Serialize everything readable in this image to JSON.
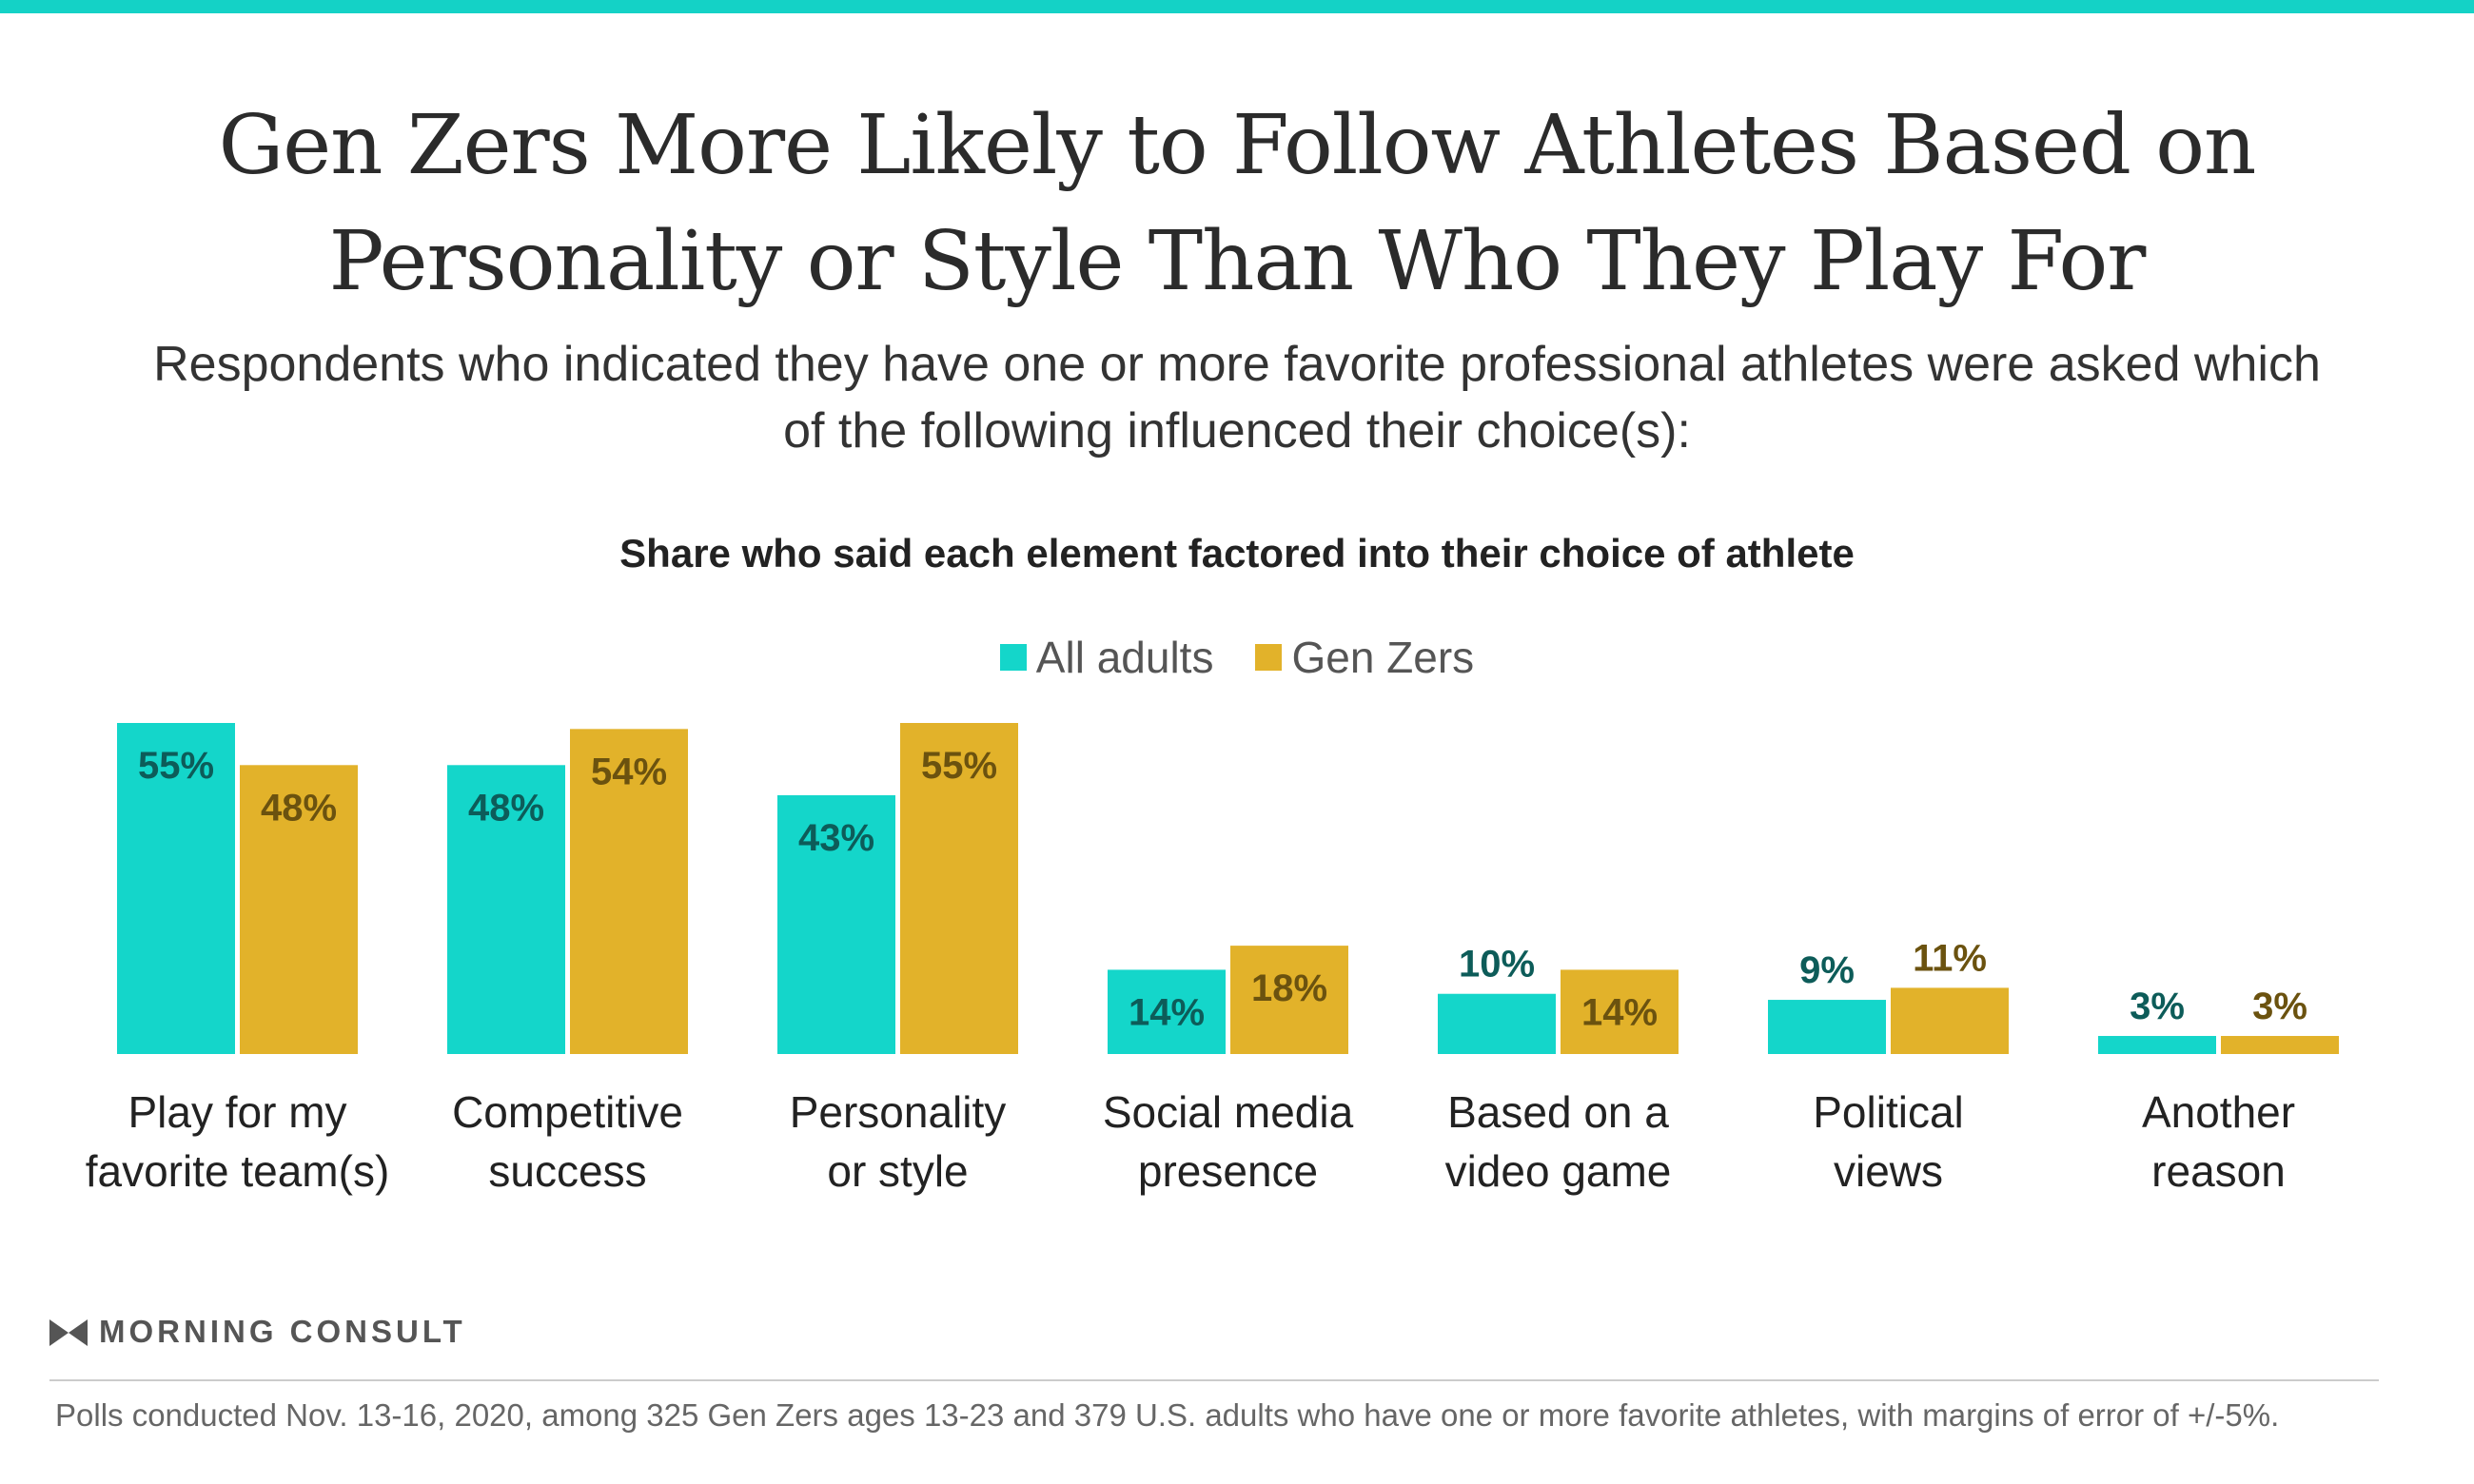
{
  "header": {
    "title": "Gen Zers More Likely to Follow Athletes Based on Personality or Style Than Who They Play For",
    "subtitle": "Respondents who indicated they have one or more favorite professional athletes were asked which of the following influenced their choice(s):",
    "accent_color": "#14d2c6"
  },
  "chart_data": {
    "type": "bar",
    "title": "Share who said each element factored into their choice of athlete",
    "categories": [
      "Play for my favorite team(s)",
      "Competitive success",
      "Personality or style",
      "Social media presence",
      "Based on a video game",
      "Political views",
      "Another reason"
    ],
    "category_lines": [
      [
        "Play for my",
        "favorite team(s)"
      ],
      [
        "Competitive",
        "success"
      ],
      [
        "Personality",
        "or style"
      ],
      [
        "Social media",
        "presence"
      ],
      [
        "Based on a",
        "video game"
      ],
      [
        "Political",
        "views"
      ],
      [
        "Another",
        "reason"
      ]
    ],
    "series": [
      {
        "name": "All adults",
        "values": [
          55,
          48,
          43,
          14,
          10,
          9,
          3
        ],
        "color": "#14d6ca",
        "label_color": "#0d5c59"
      },
      {
        "name": "Gen Zers",
        "values": [
          48,
          54,
          55,
          18,
          14,
          11,
          3
        ],
        "color": "#e2b22a",
        "label_color": "#6b520f"
      }
    ],
    "unit": "%",
    "ylim": [
      0,
      55
    ],
    "grid": false,
    "legend": "top-center"
  },
  "branding": {
    "name": "MORNING CONSULT",
    "logo_icon": "morning-consult-logo-icon"
  },
  "footnote": "Polls conducted Nov. 13-16, 2020, among 325 Gen Zers ages 13-23 and 379 U.S. adults who have one or more favorite athletes, with margins of error of +/-5%."
}
